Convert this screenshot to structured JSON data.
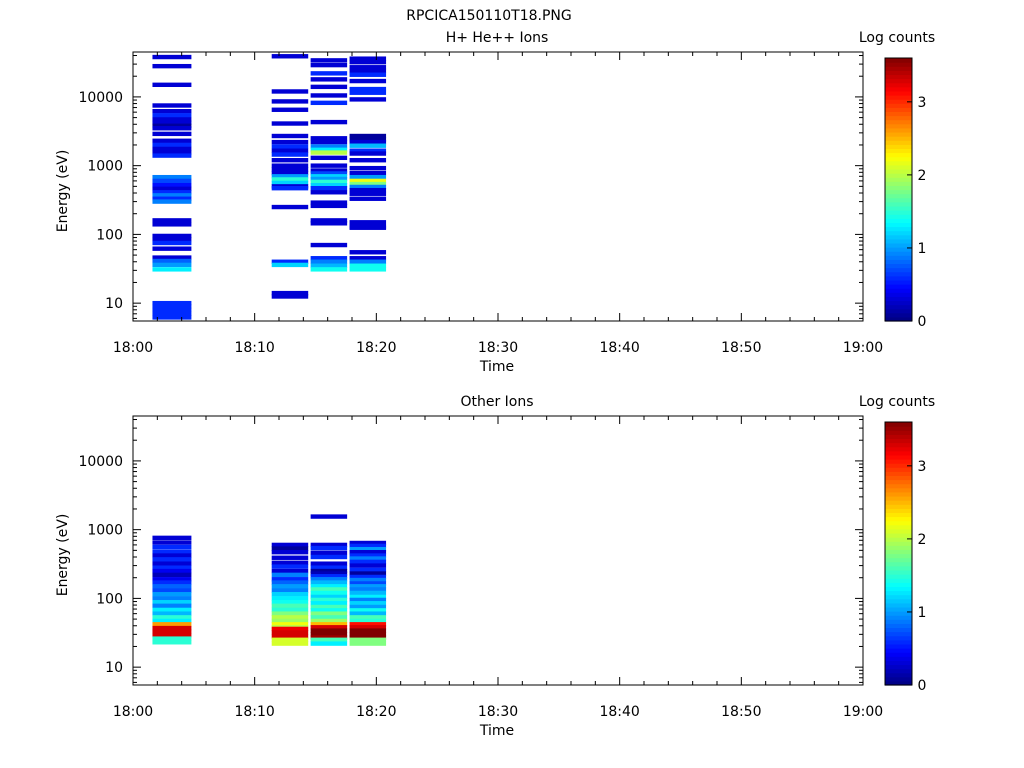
{
  "figure_title": "RPCICA150110T18.PNG",
  "chart_data": [
    {
      "type": "heatmap",
      "title": "H+ He++ Ions",
      "xlabel": "Time",
      "ylabel": "Energy (eV)",
      "x_ticks": [
        "18:00",
        "18:10",
        "18:20",
        "18:30",
        "18:40",
        "18:50",
        "19:00"
      ],
      "x_range_minutes": [
        0,
        60
      ],
      "y_scale": "log",
      "y_range": [
        5.5,
        45000
      ],
      "y_ticks": [
        10,
        100,
        1000,
        10000
      ],
      "y_tick_labels": [
        "10",
        "100",
        "1000",
        "10000"
      ],
      "colorbar": {
        "label": "Log counts",
        "range": [
          0,
          3.6
        ],
        "ticks": [
          0,
          1,
          2,
          3
        ],
        "tick_labels": [
          "0",
          "1",
          "2",
          "3"
        ],
        "colormap": "jet"
      },
      "columns": [
        {
          "t0": 1.6,
          "t1": 4.8,
          "cells": [
            [
              38000,
              0.3
            ],
            [
              28000,
              0.3
            ],
            [
              15000,
              0.3
            ],
            [
              7500,
              0.3
            ],
            [
              6200,
              0.3
            ],
            [
              5400,
              0.6
            ],
            [
              4700,
              0.3
            ],
            [
              4200,
              0.3
            ],
            [
              3800,
              0.1
            ],
            [
              3500,
              0.3
            ],
            [
              2900,
              0.3
            ],
            [
              2300,
              0.3
            ],
            [
              2000,
              0.6
            ],
            [
              1750,
              0.3
            ],
            [
              1550,
              0.3
            ],
            [
              1400,
              0.6
            ],
            [
              680,
              0.9
            ],
            [
              600,
              0.7
            ],
            [
              520,
              0.5
            ],
            [
              460,
              0.3
            ],
            [
              410,
              0.6
            ],
            [
              370,
              0.9
            ],
            [
              330,
              0.6
            ],
            [
              300,
              0.9
            ],
            [
              160,
              0.3
            ],
            [
              140,
              0.3
            ],
            [
              95,
              0.3
            ],
            [
              85,
              0.3
            ],
            [
              75,
              0.6
            ],
            [
              62,
              0.3
            ],
            [
              46,
              0.3
            ],
            [
              41,
              0.8
            ],
            [
              36,
              1.0
            ],
            [
              31,
              1.3
            ],
            [
              10,
              0.6
            ],
            [
              9,
              0.6
            ],
            [
              8,
              0.6
            ],
            [
              7,
              0.6
            ],
            [
              6.2,
              0.6
            ]
          ]
        },
        {
          "t0": 11.4,
          "t1": 14.4,
          "cells": [
            [
              39000,
              0.3
            ],
            [
              12000,
              0.3
            ],
            [
              8600,
              0.3
            ],
            [
              6500,
              0.3
            ],
            [
              4100,
              0.3
            ],
            [
              2700,
              0.3
            ],
            [
              2200,
              0.3
            ],
            [
              1900,
              0.6
            ],
            [
              1650,
              0.3
            ],
            [
              1450,
              0.6
            ],
            [
              1200,
              0.3
            ],
            [
              1000,
              0.3
            ],
            [
              880,
              0.3
            ],
            [
              780,
              0.3
            ],
            [
              700,
              1.0
            ],
            [
              630,
              1.5
            ],
            [
              560,
              1.2
            ],
            [
              500,
              0.3
            ],
            [
              470,
              0.6
            ],
            [
              250,
              0.3
            ],
            [
              40,
              0.6
            ],
            [
              36,
              1.2
            ],
            [
              14,
              0.3
            ],
            [
              12.5,
              0.3
            ]
          ]
        },
        {
          "t0": 14.6,
          "t1": 17.6,
          "cells": [
            [
              34000,
              0.3
            ],
            [
              29000,
              0.3
            ],
            [
              22000,
              0.6
            ],
            [
              18000,
              0.3
            ],
            [
              14000,
              0.3
            ],
            [
              10500,
              0.3
            ],
            [
              8200,
              0.6
            ],
            [
              4300,
              0.3
            ],
            [
              2500,
              0.3
            ],
            [
              2200,
              0.3
            ],
            [
              1900,
              0.9
            ],
            [
              1700,
              1.3
            ],
            [
              1550,
              2.0
            ],
            [
              1300,
              0.3
            ],
            [
              1000,
              0.3
            ],
            [
              850,
              0.3
            ],
            [
              770,
              0.7
            ],
            [
              700,
              1.2
            ],
            [
              640,
              1.0
            ],
            [
              580,
              1.5
            ],
            [
              520,
              1.2
            ],
            [
              470,
              0.6
            ],
            [
              410,
              0.3
            ],
            [
              290,
              0.3
            ],
            [
              260,
              0.3
            ],
            [
              160,
              0.3
            ],
            [
              145,
              0.3
            ],
            [
              70,
              0.3
            ],
            [
              45,
              0.6
            ],
            [
              40,
              0.9
            ],
            [
              35,
              1.1
            ],
            [
              31,
              1.4
            ]
          ]
        },
        {
          "t0": 17.8,
          "t1": 20.8,
          "cells": [
            [
              36000,
              0.3
            ],
            [
              32000,
              0.3
            ],
            [
              27000,
              0.3
            ],
            [
              24000,
              0.3
            ],
            [
              21000,
              0.6
            ],
            [
              17000,
              0.3
            ],
            [
              13000,
              0.6
            ],
            [
              11500,
              0.6
            ],
            [
              9200,
              0.3
            ],
            [
              2700,
              0.1
            ],
            [
              2400,
              0.1
            ],
            [
              2200,
              0.3
            ],
            [
              1950,
              1.1
            ],
            [
              1650,
              0.6
            ],
            [
              1500,
              0.3
            ],
            [
              1200,
              0.3
            ],
            [
              920,
              0.3
            ],
            [
              780,
              0.3
            ],
            [
              680,
              1.0
            ],
            [
              600,
              2.2
            ],
            [
              540,
              1.8
            ],
            [
              490,
              0.9
            ],
            [
              440,
              0.3
            ],
            [
              390,
              0.3
            ],
            [
              330,
              0.3
            ],
            [
              150,
              0.3
            ],
            [
              130,
              0.3
            ],
            [
              125,
              0.3
            ],
            [
              55,
              0.3
            ],
            [
              45,
              0.3
            ],
            [
              40,
              0.9
            ],
            [
              35,
              1.4
            ],
            [
              31,
              1.4
            ]
          ]
        }
      ]
    },
    {
      "type": "heatmap",
      "title": "Other Ions",
      "xlabel": "Time",
      "ylabel": "Energy (eV)",
      "x_ticks": [
        "18:00",
        "18:10",
        "18:20",
        "18:30",
        "18:40",
        "18:50",
        "19:00"
      ],
      "x_range_minutes": [
        0,
        60
      ],
      "y_scale": "log",
      "y_range": [
        5.5,
        45000
      ],
      "y_ticks": [
        10,
        100,
        1000,
        10000
      ],
      "y_tick_labels": [
        "10",
        "100",
        "1000",
        "10000"
      ],
      "colorbar": {
        "label": "Log counts",
        "range": [
          0,
          3.6
        ],
        "ticks": [
          0,
          1,
          2,
          3
        ],
        "tick_labels": [
          "0",
          "1",
          "2",
          "3"
        ],
        "colormap": "jet"
      },
      "columns": [
        {
          "t0": 1.6,
          "t1": 4.8,
          "cells": [
            [
              760,
              0.3
            ],
            [
              650,
              0.3
            ],
            [
              560,
              0.6
            ],
            [
              480,
              0.6
            ],
            [
              420,
              0.3
            ],
            [
              370,
              0.6
            ],
            [
              320,
              0.3
            ],
            [
              280,
              0.6
            ],
            [
              250,
              0.4
            ],
            [
              220,
              0.2
            ],
            [
              190,
              0.4
            ],
            [
              170,
              0.6
            ],
            [
              150,
              0.8
            ],
            [
              130,
              0.7
            ],
            [
              115,
              1.0
            ],
            [
              100,
              0.9
            ],
            [
              88,
              1.2
            ],
            [
              78,
              0.9
            ],
            [
              68,
              1.3
            ],
            [
              60,
              1.1
            ],
            [
              53,
              1.5
            ],
            [
              47,
              1.3
            ],
            [
              42,
              2.6
            ],
            [
              37,
              3.3
            ],
            [
              33,
              3.3
            ],
            [
              29,
              3.3
            ],
            [
              26,
              1.5
            ],
            [
              23,
              1.5
            ]
          ]
        },
        {
          "t0": 11.4,
          "t1": 14.4,
          "cells": [
            [
              600,
              0.3
            ],
            [
              530,
              0.1
            ],
            [
              470,
              0.3
            ],
            [
              390,
              0.3
            ],
            [
              330,
              0.3
            ],
            [
              290,
              0.6
            ],
            [
              250,
              0.3
            ],
            [
              220,
              0.9
            ],
            [
              190,
              0.6
            ],
            [
              170,
              0.8
            ],
            [
              150,
              1.0
            ],
            [
              130,
              0.9
            ],
            [
              115,
              1.2
            ],
            [
              100,
              1.3
            ],
            [
              88,
              1.4
            ],
            [
              78,
              1.6
            ],
            [
              68,
              1.5
            ],
            [
              60,
              1.8
            ],
            [
              53,
              2.0
            ],
            [
              47,
              1.9
            ],
            [
              42,
              2.2
            ],
            [
              38,
              2.0
            ],
            [
              36,
              3.2
            ],
            [
              32,
              3.3
            ],
            [
              28,
              3.3
            ],
            [
              25,
              2.1
            ],
            [
              22,
              2.1
            ]
          ]
        },
        {
          "t0": 14.6,
          "t1": 17.6,
          "cells": [
            [
              1550,
              0.3
            ],
            [
              600,
              0.3
            ],
            [
              540,
              0.6
            ],
            [
              460,
              0.3
            ],
            [
              400,
              0.6
            ],
            [
              320,
              0.3
            ],
            [
              280,
              0.6
            ],
            [
              250,
              0.1
            ],
            [
              230,
              0.2
            ],
            [
              210,
              0.6
            ],
            [
              190,
              0.9
            ],
            [
              170,
              1.1
            ],
            [
              150,
              1.3
            ],
            [
              135,
              1.6
            ],
            [
              120,
              1.4
            ],
            [
              105,
              1.2
            ],
            [
              95,
              1.5
            ],
            [
              85,
              1.3
            ],
            [
              75,
              1.6
            ],
            [
              67,
              1.4
            ],
            [
              60,
              1.8
            ],
            [
              53,
              1.6
            ],
            [
              47,
              1.9
            ],
            [
              42,
              2.5
            ],
            [
              38,
              3.3
            ],
            [
              34,
              3.6
            ],
            [
              30,
              3.6
            ],
            [
              27,
              3.5
            ],
            [
              25,
              1.6
            ],
            [
              22,
              1.3
            ]
          ]
        },
        {
          "t0": 17.8,
          "t1": 20.8,
          "cells": [
            [
              640,
              0.3
            ],
            [
              580,
              0.6
            ],
            [
              520,
              1.0
            ],
            [
              470,
              0.3
            ],
            [
              420,
              0.6
            ],
            [
              380,
              0.9
            ],
            [
              340,
              0.6
            ],
            [
              300,
              0.3
            ],
            [
              260,
              0.6
            ],
            [
              230,
              0.1
            ],
            [
              205,
              0.6
            ],
            [
              185,
              0.9
            ],
            [
              165,
              0.7
            ],
            [
              150,
              1.0
            ],
            [
              135,
              0.9
            ],
            [
              120,
              1.1
            ],
            [
              105,
              1.3
            ],
            [
              95,
              0.9
            ],
            [
              85,
              1.2
            ],
            [
              75,
              1.0
            ],
            [
              67,
              1.4
            ],
            [
              60,
              1.1
            ],
            [
              53,
              1.6
            ],
            [
              47,
              1.5
            ],
            [
              42,
              3.1
            ],
            [
              38,
              3.3
            ],
            [
              34,
              3.6
            ],
            [
              30,
              3.6
            ],
            [
              27,
              3.6
            ],
            [
              25,
              1.8
            ],
            [
              22,
              1.8
            ]
          ]
        }
      ]
    }
  ]
}
